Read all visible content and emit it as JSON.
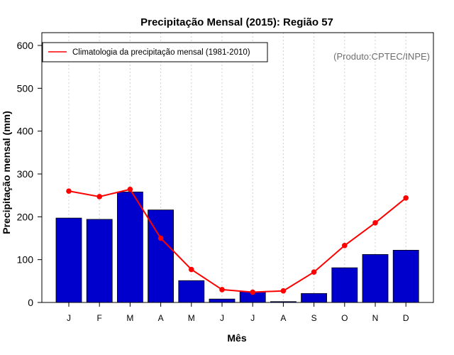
{
  "chart_data": {
    "type": "bar",
    "title": "Precipitação Mensal (2015): Região 57",
    "xlabel": "Mês",
    "ylabel": "Precipitação mensal (mm)",
    "ylim": [
      0,
      600
    ],
    "yticks": [
      0,
      100,
      200,
      300,
      400,
      500,
      600
    ],
    "categories": [
      "J",
      "F",
      "M",
      "A",
      "M",
      "J",
      "J",
      "A",
      "S",
      "O",
      "N",
      "D"
    ],
    "series": [
      {
        "name": "Precipitação mensal (2015)",
        "type": "bar",
        "color": "#0000cc",
        "values": [
          197,
          194,
          258,
          216,
          51,
          8,
          25,
          2,
          21,
          81,
          112,
          122
        ]
      },
      {
        "name": "Climatologia da precipitação mensal (1981-2010)",
        "type": "line",
        "color": "#ff0000",
        "values": [
          260,
          247,
          264,
          150,
          77,
          30,
          24,
          27,
          71,
          133,
          186,
          244
        ]
      }
    ],
    "legend": {
      "position": "top-left",
      "entries": [
        "Climatologia da precipitação mensal (1981-2010)"
      ]
    },
    "annotation": "(Produto:CPTEC/INPE)",
    "grid": {
      "vertical": true,
      "horizontal": false
    }
  }
}
